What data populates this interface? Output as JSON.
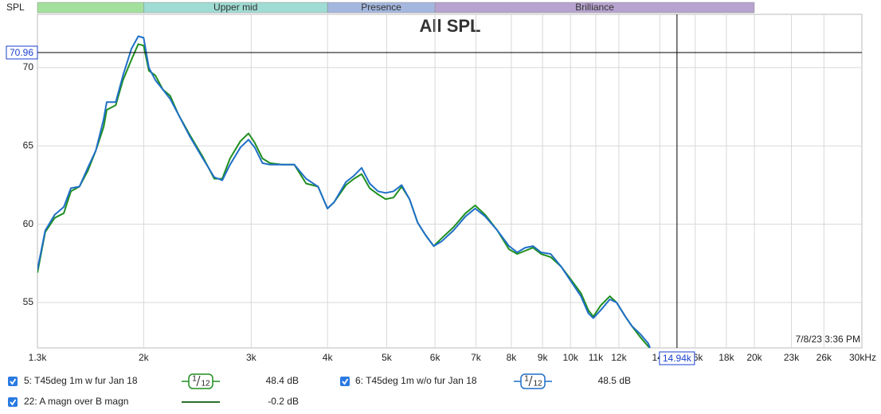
{
  "chart_data": {
    "type": "line",
    "title": "All SPL",
    "y_label": "SPL",
    "log_x": true,
    "grid": true,
    "xlim": [
      1340,
      30000
    ],
    "ylim": [
      52.1,
      73.4
    ],
    "xticks": [
      {
        "value": 1340,
        "label": "1.3k"
      },
      {
        "value": 2000,
        "label": "2k"
      },
      {
        "value": 3000,
        "label": "3k"
      },
      {
        "value": 4000,
        "label": "4k"
      },
      {
        "value": 5000,
        "label": "5k"
      },
      {
        "value": 6000,
        "label": "6k"
      },
      {
        "value": 7000,
        "label": "7k"
      },
      {
        "value": 8000,
        "label": "8k"
      },
      {
        "value": 9000,
        "label": "9k"
      },
      {
        "value": 10000,
        "label": "10k"
      },
      {
        "value": 11000,
        "label": "11k"
      },
      {
        "value": 12000,
        "label": "12k"
      },
      {
        "value": 14000,
        "label": "14k"
      },
      {
        "value": 16000,
        "label": "16k"
      },
      {
        "value": 18000,
        "label": "18k"
      },
      {
        "value": 20000,
        "label": "20k"
      },
      {
        "value": 23000,
        "label": "23k"
      },
      {
        "value": 26000,
        "label": "26k"
      },
      {
        "value": 30000,
        "label": "30kHz"
      }
    ],
    "yticks": [
      55,
      60,
      65,
      70
    ],
    "bands": [
      {
        "from": 500,
        "to": 2000,
        "color": "#a3e09c"
      },
      {
        "label": "Upper mid",
        "from": 2000,
        "to": 4000,
        "color": "#9fdcd3"
      },
      {
        "label": "Presence",
        "from": 4000,
        "to": 6000,
        "color": "#a4b7de"
      },
      {
        "label": "Brilliance",
        "from": 6000,
        "to": 20000,
        "color": "#b7a3cf"
      }
    ],
    "cursor_y": 70.96,
    "cursor_x": {
      "value": 14940,
      "label": "14.94k"
    },
    "timestamp": "7/8/23 3:36 PM",
    "x": [
      1340,
      1380,
      1430,
      1480,
      1520,
      1570,
      1620,
      1670,
      1720,
      1740,
      1800,
      1850,
      1910,
      1960,
      2000,
      2040,
      2090,
      2150,
      2210,
      2280,
      2380,
      2500,
      2610,
      2690,
      2770,
      2880,
      2970,
      3040,
      3130,
      3220,
      3370,
      3530,
      3690,
      3860,
      4000,
      4100,
      4290,
      4420,
      4550,
      4690,
      4840,
      4980,
      5130,
      5290,
      5450,
      5620,
      5790,
      5970,
      6150,
      6430,
      6730,
      6980,
      7250,
      7590,
      7930,
      8180,
      8430,
      8680,
      8950,
      9280,
      9650,
      10000,
      10400,
      10700,
      10900,
      11200,
      11600,
      11900,
      12300,
      12600,
      13000,
      13400,
      13500
    ],
    "series": [
      {
        "name": "5: T45deg 1m w fur Jan 18",
        "color": "#1f8f1f",
        "smoothing": [
          "1",
          "12"
        ],
        "level": "48.4 dB",
        "values": [
          56.9,
          59.5,
          60.4,
          60.7,
          62.1,
          62.4,
          63.4,
          64.7,
          66.2,
          67.3,
          67.6,
          69.2,
          70.5,
          71.5,
          71.4,
          69.8,
          69.5,
          68.6,
          68.2,
          67.0,
          65.7,
          64.3,
          62.9,
          62.9,
          64.2,
          65.3,
          65.8,
          65.2,
          64.2,
          63.9,
          63.8,
          63.8,
          62.6,
          62.4,
          61.0,
          61.4,
          62.5,
          62.9,
          63.2,
          62.3,
          61.9,
          61.6,
          61.7,
          62.4,
          61.6,
          60.1,
          59.3,
          58.6,
          59.1,
          59.8,
          60.7,
          61.2,
          60.6,
          59.6,
          58.4,
          58.1,
          58.3,
          58.5,
          58.1,
          57.9,
          57.3,
          56.5,
          55.6,
          54.5,
          54.1,
          54.8,
          55.4,
          55.0,
          54.1,
          53.5,
          52.8,
          52.2,
          52.1
        ]
      },
      {
        "name": "6: T45deg 1m w/o fur Jan 18",
        "color": "#1f6fc8",
        "smoothing": [
          "1",
          "12"
        ],
        "level": "48.5 dB",
        "values": [
          57.1,
          59.6,
          60.6,
          61.1,
          62.3,
          62.4,
          63.6,
          64.7,
          66.7,
          67.8,
          67.8,
          69.5,
          71.2,
          72.0,
          71.9,
          70.0,
          69.2,
          68.6,
          68.0,
          67.0,
          65.6,
          64.2,
          63.0,
          62.8,
          63.8,
          64.9,
          65.4,
          64.9,
          63.9,
          63.8,
          63.8,
          63.8,
          62.9,
          62.4,
          61.0,
          61.4,
          62.7,
          63.1,
          63.6,
          62.6,
          62.1,
          62.0,
          62.1,
          62.5,
          61.6,
          60.1,
          59.3,
          58.6,
          58.9,
          59.6,
          60.5,
          61.0,
          60.5,
          59.6,
          58.6,
          58.2,
          58.5,
          58.6,
          58.2,
          58.1,
          57.3,
          56.4,
          55.4,
          54.3,
          54.0,
          54.5,
          55.2,
          55.0,
          54.1,
          53.5,
          53.0,
          52.4,
          52.1
        ]
      }
    ]
  },
  "other_trace": {
    "name": "22: A magn over B magn",
    "color": "#2c6e2c",
    "level": "-0.2 dB"
  }
}
